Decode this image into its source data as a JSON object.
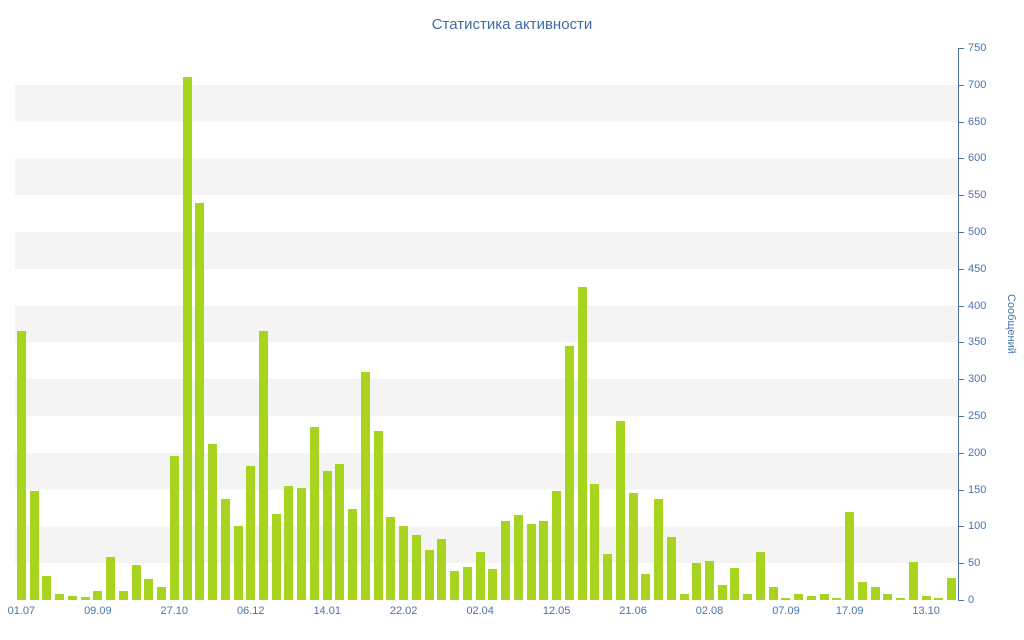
{
  "chart_data": {
    "type": "bar",
    "title": "Статистика активности",
    "ylabel": "Сообщений",
    "xlabel": "",
    "ylim": [
      0,
      750
    ],
    "y_tick_step": 50,
    "y_ticks": [
      750,
      700,
      650,
      600,
      550,
      500,
      450,
      400,
      350,
      300,
      250,
      200,
      150,
      100,
      50,
      0
    ],
    "grid": "horizontal-stripes",
    "legend": "none",
    "x_labels": [
      {
        "index": 0,
        "label": "01.07"
      },
      {
        "index": 6,
        "label": "09.09"
      },
      {
        "index": 12,
        "label": "27.10"
      },
      {
        "index": 18,
        "label": "06.12"
      },
      {
        "index": 24,
        "label": "14.01"
      },
      {
        "index": 30,
        "label": "22.02"
      },
      {
        "index": 36,
        "label": "02.04"
      },
      {
        "index": 42,
        "label": "12.05"
      },
      {
        "index": 48,
        "label": "21.06"
      },
      {
        "index": 54,
        "label": "02.08"
      },
      {
        "index": 60,
        "label": "07.09"
      },
      {
        "index": 65,
        "label": "17.09"
      },
      {
        "index": 71,
        "label": "13.10"
      }
    ],
    "values": [
      365,
      148,
      32,
      8,
      5,
      4,
      12,
      58,
      12,
      47,
      28,
      18,
      195,
      710,
      540,
      212,
      137,
      100,
      182,
      365,
      117,
      155,
      152,
      235,
      175,
      185,
      123,
      310,
      230,
      113,
      100,
      88,
      68,
      83,
      40,
      45,
      65,
      42,
      108,
      115,
      103,
      108,
      148,
      345,
      425,
      157,
      62,
      243,
      146,
      35,
      137,
      85,
      8,
      50,
      53,
      20,
      43,
      8,
      65,
      18,
      3,
      8,
      5,
      8,
      3,
      120,
      25,
      18,
      8,
      3,
      52,
      5,
      3,
      30
    ],
    "colors": {
      "bar": "#a6d41f",
      "axis": "#4a74a8",
      "title": "#3e6da6",
      "stripe": "#f4f4f4",
      "background": "#ffffff"
    }
  }
}
